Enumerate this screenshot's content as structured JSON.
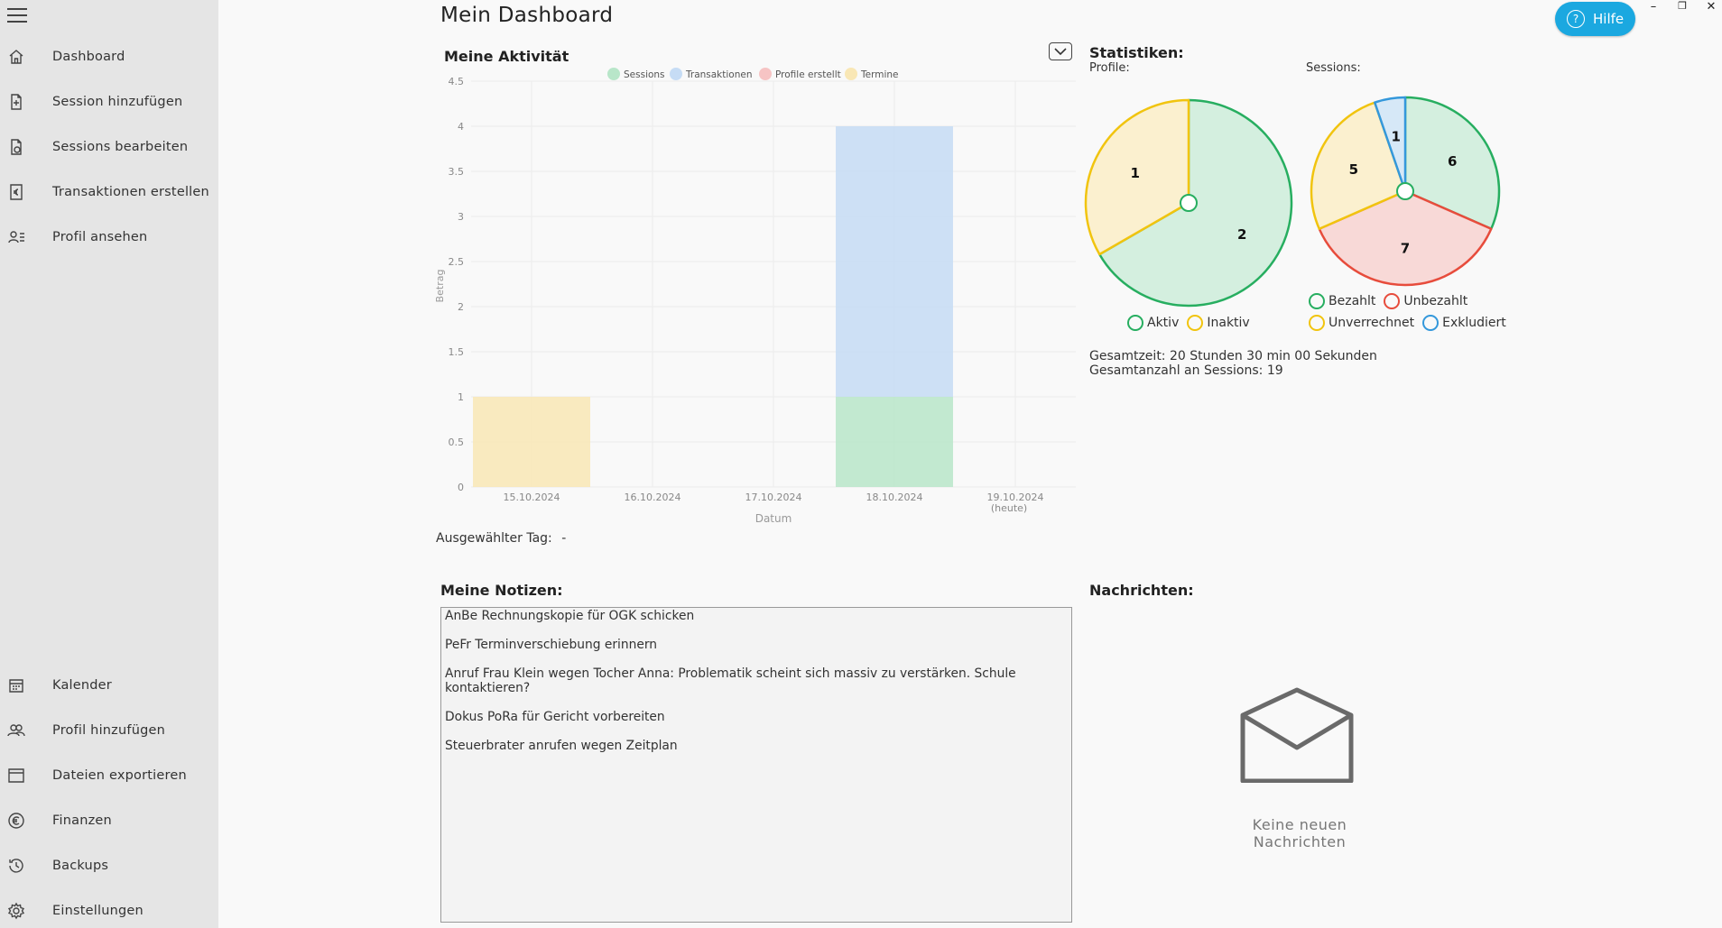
{
  "sidebar": {
    "menu_icon": "hamburger-icon",
    "top_items": [
      {
        "label": "Dashboard",
        "icon": "home-icon"
      },
      {
        "label": "Session hinzufügen",
        "icon": "add-document-icon"
      },
      {
        "label": "Sessions bearbeiten",
        "icon": "edit-document-icon"
      },
      {
        "label": "Transaktionen erstellen",
        "icon": "euro-receipt-icon"
      },
      {
        "label": "Profil ansehen",
        "icon": "profile-list-icon"
      }
    ],
    "bottom_items": [
      {
        "label": "Kalender",
        "icon": "calendar-icon"
      },
      {
        "label": "Profil hinzufügen",
        "icon": "add-profile-icon"
      },
      {
        "label": "Dateien exportieren",
        "icon": "export-icon"
      },
      {
        "label": "Finanzen",
        "icon": "euro-icon"
      },
      {
        "label": "Backups",
        "icon": "history-icon"
      },
      {
        "label": "Einstellungen",
        "icon": "gear-icon"
      }
    ]
  },
  "window": {
    "minimize": "–",
    "maximize": "❐",
    "close": "✕"
  },
  "help": {
    "label": "Hilfe",
    "icon": "question-icon"
  },
  "page_title": "Mein Dashboard",
  "activity": {
    "title": "Meine Aktivität",
    "selected_day_label": "Ausgewählter Tag:",
    "selected_day_value": "-"
  },
  "chart_data": {
    "type": "bar",
    "title": "",
    "xlabel": "Datum",
    "ylabel": "Betrag",
    "ylim": [
      0,
      4.5
    ],
    "yticks": [
      "0",
      "0.5",
      "1",
      "1.5",
      "2",
      "2.5",
      "3",
      "3.5",
      "4",
      "4.5"
    ],
    "categories": [
      "15.10.2024",
      "16.10.2024",
      "17.10.2024",
      "18.10.2024",
      "19.10.2024"
    ],
    "category_sublabels": [
      "",
      "",
      "",
      "",
      "(heute)"
    ],
    "stacked": true,
    "legend_position": "top",
    "grid": true,
    "series": [
      {
        "name": "Sessions",
        "color": "#b8e6c9",
        "values": [
          0,
          0,
          0,
          1,
          0
        ]
      },
      {
        "name": "Transaktionen",
        "color": "#c6dcf5",
        "values": [
          0,
          0,
          0,
          3,
          0
        ]
      },
      {
        "name": "Profile erstellt",
        "color": "#f6c4c4",
        "values": [
          0,
          0,
          0,
          0,
          0
        ]
      },
      {
        "name": "Termine",
        "color": "#f9e7b5",
        "values": [
          1,
          0,
          0,
          0,
          0
        ]
      }
    ]
  },
  "stats": {
    "title": "Statistiken:",
    "profiles_label": "Profile:",
    "sessions_label": "Sessions:",
    "profiles_pie": {
      "slices": [
        {
          "name": "Aktiv",
          "value": 2,
          "fill": "#d4efdf",
          "stroke": "#27ae60"
        },
        {
          "name": "Inaktiv",
          "value": 1,
          "fill": "#fbf0cf",
          "stroke": "#f1c40f"
        }
      ]
    },
    "sessions_pie": {
      "slices": [
        {
          "name": "Bezahlt",
          "value": 6,
          "fill": "#d4efdf",
          "stroke": "#27ae60"
        },
        {
          "name": "Unbezahlt",
          "value": 7,
          "fill": "#f8d9d7",
          "stroke": "#e74c3c"
        },
        {
          "name": "Unverrechnet",
          "value": 5,
          "fill": "#fbf0cf",
          "stroke": "#f1c40f"
        },
        {
          "name": "Exkludiert",
          "value": 1,
          "fill": "#d6e8f7",
          "stroke": "#3498db"
        }
      ]
    },
    "total_time": "Gesamtzeit: 20 Stunden 30 min 00 Sekunden",
    "total_sessions": "Gesamtanzahl an Sessions: 19"
  },
  "notes": {
    "title": "Meine Notizen:",
    "items": [
      "AnBe Rechnungskopie für OGK schicken",
      "PeFr Terminverschiebung erinnern",
      "Anruf Frau Klein wegen Tocher Anna: Problematik scheint sich massiv zu verstärken. Schule kontaktieren?",
      "Dokus PoRa für Gericht vorbereiten",
      "Steuerbrater anrufen wegen Zeitplan"
    ]
  },
  "messages": {
    "title": "Nachrichten:",
    "empty_text": "Keine neuen Nachrichten",
    "icon": "envelope-icon"
  }
}
